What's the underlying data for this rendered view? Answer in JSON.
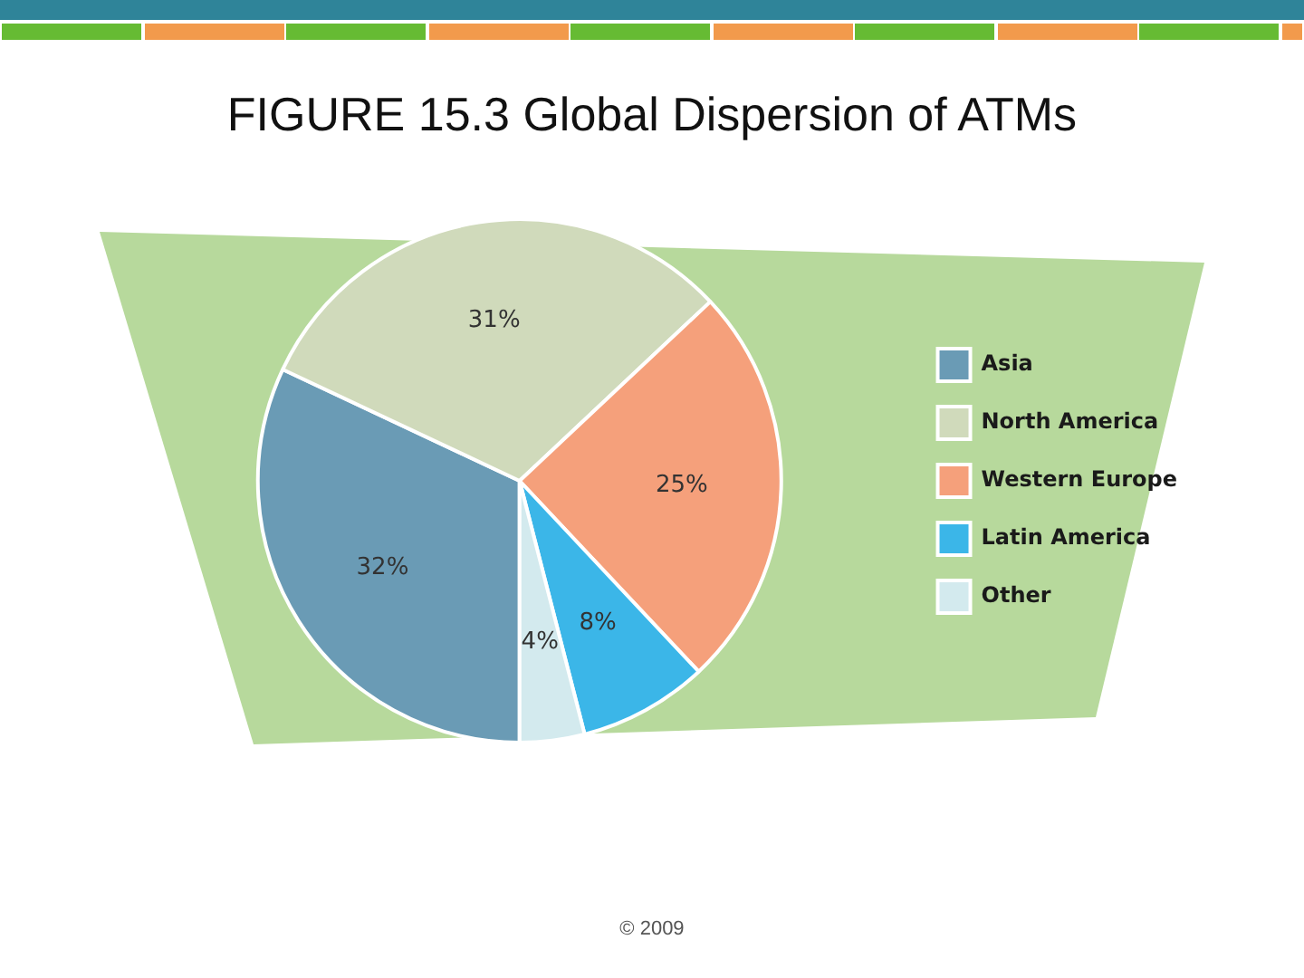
{
  "chart_data": {
    "type": "pie",
    "title": "FIGURE 15.3 Global Dispersion of ATMs",
    "categories": [
      "Asia",
      "North America",
      "Western Europe",
      "Latin America",
      "Other"
    ],
    "values": [
      32,
      31,
      25,
      8,
      4
    ],
    "colors": [
      "#6a9bb5",
      "#d0dabb",
      "#f5a07b",
      "#3bb6e8",
      "#d3eaee"
    ],
    "value_labels": [
      "32%",
      "31%",
      "25%",
      "8%",
      "4%"
    ],
    "legend": "right",
    "annotations": [
      "© 2009"
    ]
  }
}
